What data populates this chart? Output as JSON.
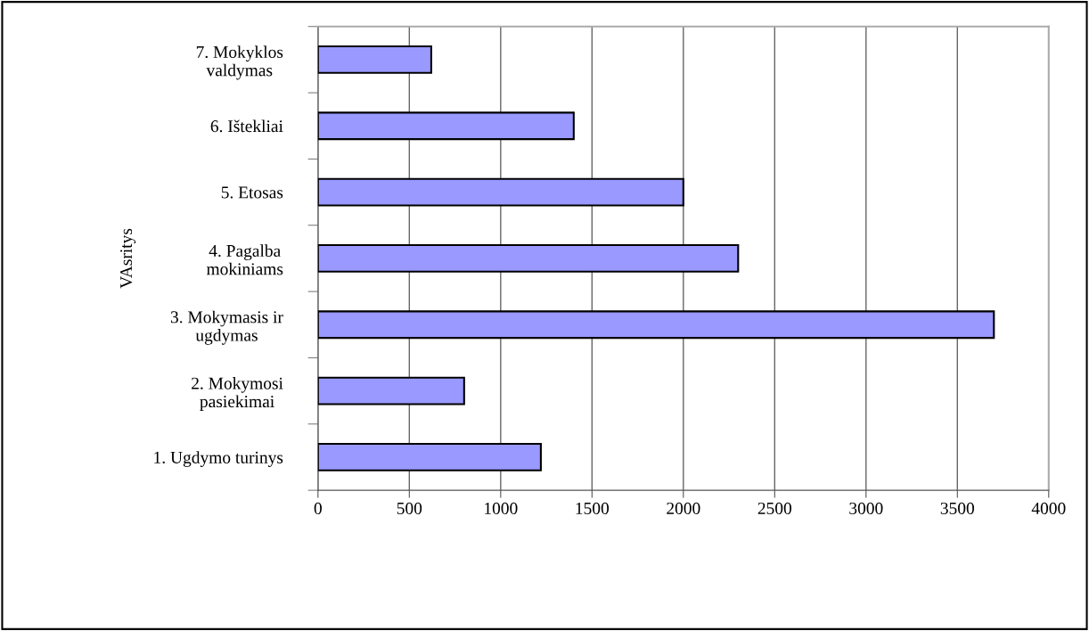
{
  "chart_data": {
    "type": "bar",
    "orientation": "horizontal",
    "ylabel": "VAsritys",
    "categories": [
      "7. Mokyklos\nvaldymas",
      "6. Ištekliai",
      "5. Etosas",
      "4. Pagalba\nmokiniams",
      "3. Mokymasis ir\nugdymas",
      "2. Mokymosi\npasiekimai",
      "1. Ugdymo turinys"
    ],
    "values": [
      620,
      1400,
      2000,
      2300,
      3700,
      800,
      1220
    ],
    "color": "#9999ff",
    "xlim": [
      0,
      4000
    ],
    "xticks": [
      0,
      500,
      1000,
      1500,
      2000,
      2500,
      3000,
      3500,
      4000
    ],
    "grid": "x",
    "legend": false
  }
}
